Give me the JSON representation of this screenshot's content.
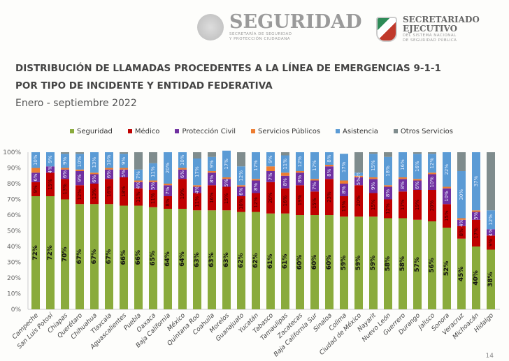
{
  "header": {
    "logo1_title": "SEGURIDAD",
    "logo1_sub1": "SECRETARÍA DE SEGURIDAD",
    "logo1_sub2": "Y PROTECCIÓN CIUDADANA",
    "logo2_title1": "SECRETARIADO",
    "logo2_title2": "EJECUTIVO",
    "logo2_sub1": "DEL SISTEMA NACIONAL",
    "logo2_sub2": "DE SEGURIDAD PÚBLICA"
  },
  "page_number": "14",
  "chart_data": {
    "type": "bar",
    "stacked": true,
    "percent": true,
    "title_line1": "DISTRIBUCIÓN DE LLAMADAS PROCEDENTES A LA LÍNEA DE EMERGENCIAS 9-1-1",
    "title_line2": "POR TIPO DE INCIDENTE Y ENTIDAD FEDERATIVA",
    "subtitle": "Enero - septiembre 2022",
    "legend_position": "top",
    "ylim": [
      0,
      100
    ],
    "yticks": [
      "0%",
      "10%",
      "20%",
      "30%",
      "40%",
      "50%",
      "60%",
      "70%",
      "80%",
      "90%",
      "100%"
    ],
    "categories": [
      "Campeche",
      "San Luis Potosí",
      "Chiapas",
      "Querétaro",
      "Chihuahua",
      "Tlaxcala",
      "Aguascalientes",
      "Puebla",
      "Oaxaca",
      "Baja California",
      "México",
      "Quintana Roo",
      "Coahuila",
      "Morelos",
      "Guanajuato",
      "Yucatán",
      "Tabasco",
      "Tamaulipas",
      "Zacatecas",
      "Baja California Sur",
      "Sinaloa",
      "Colima",
      "Ciudad de México",
      "Nayarit",
      "Nuevo León",
      "Guerrero",
      "Durango",
      "Jalisco",
      "Sonora",
      "Veracruz",
      "Michoacán",
      "Hidalgo"
    ],
    "series": [
      {
        "name": "Seguridad",
        "color": "#8aab3c",
        "labeled": true,
        "values": [
          72,
          72,
          70,
          67,
          67,
          67,
          66,
          66,
          65,
          64,
          64,
          63,
          63,
          63,
          62,
          62,
          61,
          61,
          60,
          60,
          60,
          59,
          59,
          59,
          58,
          58,
          57,
          56,
          52,
          45,
          40,
          38
        ]
      },
      {
        "name": "Médico",
        "color": "#c00000",
        "labeled": true,
        "values": [
          9,
          15,
          13,
          12,
          13,
          16,
          18,
          11,
          11,
          8,
          19,
          11,
          16,
          15,
          10,
          12,
          20,
          16,
          19,
          15,
          23,
          13,
          20,
          15,
          12,
          17,
          19,
          20,
          15,
          8,
          17,
          9
        ]
      },
      {
        "name": "Protección Civil",
        "color": "#7030a0",
        "labeled": true,
        "values": [
          6,
          4,
          6,
          9,
          6,
          6,
          5,
          4,
          5,
          7,
          6,
          4,
          8,
          5,
          6,
          8,
          7,
          8,
          8,
          7,
          8,
          8,
          5,
          9,
          8,
          8,
          6,
          10,
          10,
          4,
          5,
          4
        ]
      },
      {
        "name": "Servicios Públicos",
        "color": "#ed7d31",
        "labeled": false,
        "values": [
          3,
          0,
          1,
          1,
          1,
          1,
          1,
          1,
          1,
          1,
          1,
          1,
          1,
          1,
          1,
          1,
          3,
          2,
          1,
          1,
          1,
          2,
          1,
          1,
          1,
          1,
          1,
          1,
          1,
          1,
          1,
          0
        ]
      },
      {
        "name": "Asistencia",
        "color": "#5b9bd5",
        "labeled": true,
        "values": [
          10,
          9,
          9,
          10,
          13,
          10,
          9,
          7,
          11,
          20,
          10,
          17,
          9,
          17,
          12,
          17,
          9,
          11,
          12,
          17,
          8,
          17,
          2,
          15,
          18,
          16,
          16,
          12,
          22,
          30,
          37,
          12
        ]
      },
      {
        "name": "Otros Servicios",
        "color": "#7f8c8d",
        "labeled": false,
        "values": [
          0,
          0,
          1,
          1,
          0,
          0,
          1,
          11,
          7,
          0,
          0,
          4,
          3,
          0,
          9,
          0,
          0,
          2,
          0,
          0,
          0,
          0,
          13,
          1,
          3,
          0,
          1,
          1,
          0,
          12,
          0,
          37
        ]
      }
    ]
  }
}
